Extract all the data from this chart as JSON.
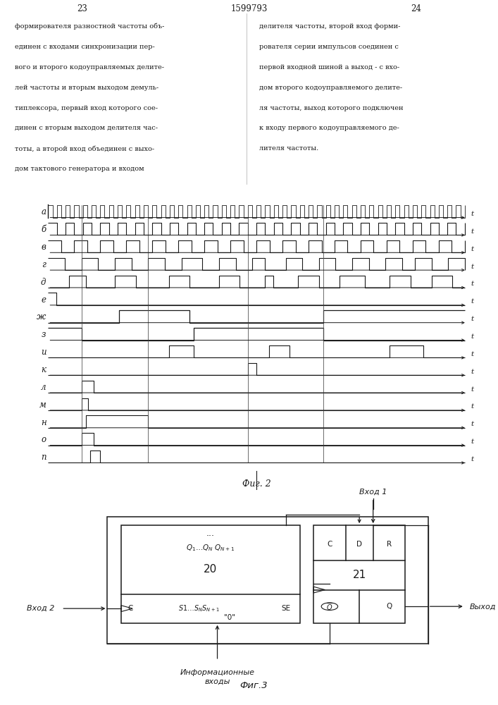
{
  "page_numbers_left": "23",
  "page_numbers_center": "1599793",
  "page_numbers_right": "24",
  "text_left": "формирователя разностной частоты объ-\nединен с входами синхронизации пер-\nвого и второго кодоуправляемых делите-\nлей частоты и вторым выходом демуль-\nтиплексора, первый вход которого сое-\nдинен с вторым выходом делителя час-\nтоты, а второй вход объединен с выхо-\nдом тактового генератора и входом",
  "text_right": "делителя частоты, второй вход форми-\nрователя серии импульсов соединен с\nпервой входной шиной а выход - с вхо-\nдом второго кодоуправляемого делите-\nля частоты, выход которого подключен\nк входу первого кодоуправляемого де-\nлителя частоты.",
  "fig2_caption": "Фиг. 2",
  "fig3_caption": "Фиг.3",
  "timing_labels": [
    "а",
    "б",
    "в",
    "г",
    "д",
    "е",
    "ж",
    "з",
    "и",
    "к",
    "л",
    "м",
    "н",
    "о",
    "п"
  ],
  "bg_color": "#ffffff",
  "line_color": "#1a1a1a"
}
